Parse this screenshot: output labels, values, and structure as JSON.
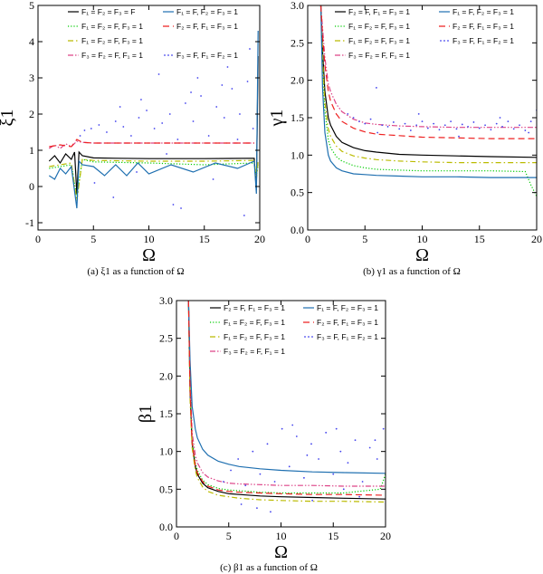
{
  "figure": {
    "captions": [
      "(a) ξ1 as a function of Ω",
      "(b) γ1 as a function of Ω",
      "(c) β1 as a function of Ω"
    ]
  },
  "chart_data": [
    {
      "id": "a",
      "type": "line",
      "title": "",
      "xlabel": "Ω",
      "ylabel": "ξ1",
      "xlim": [
        0,
        20
      ],
      "ylim": [
        -1.2,
        5
      ],
      "xticks": [
        0,
        5,
        10,
        15,
        20
      ],
      "yticks": [
        -1,
        0,
        1,
        2,
        3,
        4,
        5
      ],
      "legend_position": "top-right",
      "series": [
        {
          "name": "F₁ = F₂ = F₃ = F",
          "color": "#000000",
          "style": "solid",
          "x": [
            1,
            1.5,
            2,
            2.5,
            3,
            3.3,
            3.5,
            3.7,
            4,
            5,
            7,
            10,
            15,
            19.5,
            19.7,
            19.85
          ],
          "y": [
            0.7,
            0.85,
            0.65,
            0.9,
            0.75,
            0.95,
            -0.2,
            0.95,
            0.85,
            0.79,
            0.78,
            0.77,
            0.77,
            0.78,
            -0.1,
            3.6
          ]
        },
        {
          "name": "F₁ = F₂ = F, F₃ = 1",
          "color": "#00cc00",
          "style": "dotted",
          "x": [
            1,
            2,
            3,
            3.5,
            4,
            5,
            10,
            15,
            19.5,
            19.7,
            19.85
          ],
          "y": [
            0.5,
            0.55,
            0.6,
            -0.3,
            0.75,
            0.68,
            0.65,
            0.6,
            0.65,
            0.3,
            0.6
          ]
        },
        {
          "name": "F₁ = F₂ = F, F₃ = 1",
          "color": "#bbbb00",
          "style": "dashdot",
          "x": [
            1,
            2,
            3,
            3.5,
            4,
            5,
            10,
            15,
            19.5,
            19.7,
            19.85
          ],
          "y": [
            0.55,
            0.6,
            0.65,
            -0.4,
            0.75,
            0.72,
            0.7,
            0.7,
            0.72,
            0.2,
            0.7
          ]
        },
        {
          "name": "F₃ = F₂ = F, F₁ = 1",
          "color": "#dd4488",
          "style": "dashdotdot",
          "x": [
            1,
            1.5,
            2,
            2.5,
            3,
            3.5,
            4,
            5,
            10,
            15,
            19.5
          ],
          "y": [
            1.05,
            1.15,
            1.05,
            1.18,
            1.1,
            1.25,
            1.22,
            1.2,
            1.2,
            1.2,
            1.2
          ]
        },
        {
          "name": "F₁ = F, F₂ = F₃ = 1",
          "color": "#1e6fb0",
          "style": "solid",
          "x": [
            1,
            1.5,
            2,
            2.5,
            3,
            3.5,
            3.7,
            4,
            5,
            6,
            7,
            8,
            9,
            10,
            12,
            14,
            16,
            18,
            19.5,
            19.7,
            19.85
          ],
          "y": [
            0.3,
            0.2,
            0.5,
            0.35,
            0.55,
            -0.6,
            0.7,
            0.6,
            0.55,
            0.3,
            0.6,
            0.3,
            0.65,
            0.35,
            0.6,
            0.4,
            0.65,
            0.5,
            0.7,
            -0.2,
            4.3
          ]
        },
        {
          "name": "F₂ = F, F₁ = F₃ = 1",
          "color": "#ee2222",
          "style": "dashed",
          "x": [
            1,
            2,
            3,
            3.5,
            4,
            5,
            10,
            15,
            19.5
          ],
          "y": [
            1.1,
            1.15,
            1.1,
            1.3,
            1.22,
            1.2,
            1.2,
            1.2,
            1.2
          ]
        },
        {
          "name": "F₃ = F, F₁ = F₂ = 1",
          "color": "#4444ee",
          "style": "scatter",
          "x": [
            3.8,
            4.2,
            4.8,
            5.5,
            6.2,
            7.0,
            7.7,
            8.4,
            9.1,
            9.8,
            10.5,
            11.2,
            11.9,
            12.6,
            13.3,
            14.0,
            14.7,
            15.4,
            16.1,
            16.8,
            17.5,
            18.2,
            18.9,
            19.4,
            5.1,
            6.8,
            8.9,
            10.9,
            12.2,
            13.8,
            15.8,
            17.1,
            18.6,
            9.3,
            11.6,
            14.4,
            16.6,
            18.0,
            19.1,
            7.4,
            12.9
          ],
          "y": [
            1.4,
            1.55,
            1.6,
            1.7,
            1.5,
            1.8,
            1.65,
            1.4,
            1.9,
            2.1,
            1.6,
            1.75,
            2.0,
            1.3,
            2.3,
            1.8,
            2.5,
            1.4,
            2.2,
            1.9,
            2.7,
            2.0,
            2.9,
            1.6,
            0.1,
            -0.3,
            0.4,
            3.1,
            -0.5,
            2.6,
            0.2,
            3.3,
            -0.8,
            2.4,
            0.9,
            3.0,
            2.8,
            1.3,
            3.8,
            2.2,
            -0.6
          ]
        }
      ]
    },
    {
      "id": "b",
      "type": "line",
      "title": "",
      "xlabel": "Ω",
      "ylabel": "γ1",
      "xlim": [
        0,
        20
      ],
      "ylim": [
        0,
        3
      ],
      "xticks": [
        0,
        5,
        10,
        15,
        20
      ],
      "yticks": [
        0.0,
        0.5,
        1.0,
        1.5,
        2.0,
        2.5,
        3.0
      ],
      "legend_position": "top-right",
      "series": [
        {
          "name": "F₂ = F, F₁ = F₃ = 1",
          "color": "#000000",
          "style": "solid",
          "x": [
            1.15,
            1.3,
            1.5,
            1.8,
            2,
            2.5,
            3,
            4,
            5,
            6,
            8,
            10,
            13,
            16,
            20
          ],
          "y": [
            3.0,
            2.4,
            1.85,
            1.5,
            1.4,
            1.25,
            1.17,
            1.1,
            1.06,
            1.04,
            1.01,
            1.0,
            0.99,
            0.98,
            0.97
          ]
        },
        {
          "name": "F₁ = F₂ = F, F₃ = 1",
          "color": "#00cc00",
          "style": "dotted",
          "x": [
            1.15,
            1.3,
            1.5,
            1.8,
            2,
            2.5,
            3,
            4,
            5,
            6,
            8,
            10,
            13,
            16,
            19,
            19.5,
            20
          ],
          "y": [
            3.0,
            2.2,
            1.6,
            1.2,
            1.1,
            0.98,
            0.92,
            0.86,
            0.83,
            0.81,
            0.8,
            0.79,
            0.79,
            0.79,
            0.78,
            0.6,
            0.45
          ]
        },
        {
          "name": "F₁ = F₂ = F, F₃ = 1",
          "color": "#bbbb00",
          "style": "dashdot",
          "x": [
            1.15,
            1.3,
            1.5,
            1.8,
            2,
            2.5,
            3,
            4,
            5,
            6,
            8,
            10,
            13,
            16,
            20
          ],
          "y": [
            3.0,
            2.3,
            1.7,
            1.35,
            1.25,
            1.12,
            1.05,
            0.99,
            0.96,
            0.94,
            0.92,
            0.91,
            0.9,
            0.9,
            0.9
          ]
        },
        {
          "name": "F₃ = F₂ = F, F₁ = 1",
          "color": "#dd4488",
          "style": "dashdotdot",
          "x": [
            1.15,
            1.3,
            1.5,
            1.8,
            2,
            2.5,
            3,
            4,
            5,
            6,
            8,
            10,
            13,
            16,
            20
          ],
          "y": [
            3.0,
            2.7,
            2.3,
            1.95,
            1.85,
            1.68,
            1.58,
            1.48,
            1.43,
            1.41,
            1.39,
            1.38,
            1.37,
            1.37,
            1.37
          ]
        },
        {
          "name": "F₁ = F, F₂ = F₃ = 1",
          "color": "#1e6fb0",
          "style": "solid",
          "x": [
            1.15,
            1.3,
            1.5,
            1.8,
            2,
            2.5,
            3,
            4,
            5,
            6,
            8,
            10,
            13,
            16,
            19.5,
            20
          ],
          "y": [
            3.0,
            1.9,
            1.3,
            1.0,
            0.92,
            0.83,
            0.79,
            0.75,
            0.74,
            0.73,
            0.72,
            0.71,
            0.71,
            0.7,
            0.7,
            0.7
          ]
        },
        {
          "name": "F₂ = F, F₁ = F₃ = 1",
          "color": "#ee2222",
          "style": "dashed",
          "x": [
            1.15,
            1.3,
            1.5,
            1.8,
            2,
            2.5,
            3,
            4,
            5,
            6,
            8,
            10,
            13,
            16,
            20
          ],
          "y": [
            3.0,
            2.6,
            2.2,
            1.85,
            1.72,
            1.55,
            1.45,
            1.36,
            1.31,
            1.28,
            1.26,
            1.24,
            1.23,
            1.22,
            1.22
          ]
        },
        {
          "name": "F₃ = F, F₁ = F₂ = 1",
          "color": "#4444ee",
          "style": "scatter",
          "x": [
            3.5,
            4.0,
            4.5,
            5.0,
            5.5,
            6.0,
            6.5,
            7.0,
            7.5,
            8.0,
            8.5,
            9.0,
            9.5,
            10.0,
            10.5,
            11.0,
            11.5,
            12.0,
            12.5,
            13.0,
            13.5,
            14.0,
            14.5,
            15.0,
            15.5,
            16.0,
            16.5,
            17.0,
            17.5,
            18.0,
            18.5,
            19.0,
            19.5,
            20.0,
            6.1,
            9.7,
            13.2,
            16.8,
            19.3
          ],
          "y": [
            1.55,
            1.5,
            1.45,
            1.42,
            1.48,
            1.9,
            1.4,
            1.38,
            1.44,
            1.35,
            1.42,
            1.33,
            1.4,
            1.45,
            1.36,
            1.42,
            1.34,
            1.4,
            1.45,
            1.35,
            1.41,
            1.38,
            1.44,
            1.36,
            1.4,
            1.34,
            1.42,
            1.38,
            1.45,
            1.35,
            1.4,
            1.33,
            1.45,
            1.6,
            1.3,
            1.55,
            1.25,
            1.5,
            1.3
          ]
        }
      ]
    },
    {
      "id": "c",
      "type": "line",
      "title": "",
      "xlabel": "Ω",
      "ylabel": "β1",
      "xlim": [
        0,
        20
      ],
      "ylim": [
        0,
        3
      ],
      "xticks": [
        0,
        5,
        10,
        15,
        20
      ],
      "yticks": [
        0.0,
        0.5,
        1.0,
        1.5,
        2.0,
        2.5,
        3.0
      ],
      "legend_position": "top-right",
      "series": [
        {
          "name": "F₂ = F, F₁ = F₃ = 1",
          "color": "#000000",
          "style": "solid",
          "x": [
            1.15,
            1.3,
            1.5,
            1.8,
            2,
            2.5,
            3,
            4,
            5,
            6,
            8,
            10,
            13,
            16,
            20
          ],
          "y": [
            3.0,
            1.8,
            1.1,
            0.8,
            0.7,
            0.58,
            0.52,
            0.47,
            0.44,
            0.43,
            0.41,
            0.4,
            0.39,
            0.38,
            0.37
          ]
        },
        {
          "name": "F₁ = F₂ = F, F₃ = 1",
          "color": "#00cc00",
          "style": "dotted",
          "x": [
            1.15,
            1.3,
            1.5,
            1.8,
            2,
            2.5,
            3,
            4,
            5,
            6,
            8,
            10,
            13,
            16,
            19.5,
            20
          ],
          "y": [
            3.0,
            1.9,
            1.15,
            0.85,
            0.75,
            0.62,
            0.56,
            0.51,
            0.49,
            0.48,
            0.46,
            0.45,
            0.45,
            0.45,
            0.5,
            0.7
          ]
        },
        {
          "name": "F₁ = F₂ = F, F₃ = 1",
          "color": "#bbbb00",
          "style": "dashdot",
          "x": [
            1.15,
            1.3,
            1.5,
            1.8,
            2,
            2.5,
            3,
            4,
            5,
            6,
            8,
            10,
            13,
            16,
            20
          ],
          "y": [
            3.0,
            1.7,
            1.05,
            0.75,
            0.65,
            0.53,
            0.47,
            0.42,
            0.4,
            0.38,
            0.36,
            0.35,
            0.34,
            0.34,
            0.33
          ]
        },
        {
          "name": "F₃ = F₂ = F, F₁ = 1",
          "color": "#dd4488",
          "style": "dashdotdot",
          "x": [
            1.15,
            1.3,
            1.5,
            1.8,
            2,
            2.5,
            3,
            4,
            5,
            6,
            8,
            10,
            13,
            16,
            20
          ],
          "y": [
            3.0,
            2.0,
            1.25,
            0.95,
            0.85,
            0.72,
            0.66,
            0.61,
            0.58,
            0.57,
            0.56,
            0.55,
            0.55,
            0.54,
            0.54
          ]
        },
        {
          "name": "F₁ = F, F₂ = F₃ = 1",
          "color": "#1e6fb0",
          "style": "solid",
          "x": [
            1.15,
            1.3,
            1.5,
            1.8,
            2,
            2.5,
            3,
            4,
            5,
            6,
            8,
            10,
            13,
            16,
            20
          ],
          "y": [
            3.0,
            2.2,
            1.6,
            1.3,
            1.18,
            1.03,
            0.95,
            0.87,
            0.83,
            0.8,
            0.77,
            0.75,
            0.73,
            0.72,
            0.71
          ]
        },
        {
          "name": "F₂ = F, F₁ = F₃ = 1",
          "color": "#ee2222",
          "style": "dashed",
          "x": [
            1.15,
            1.3,
            1.5,
            1.8,
            2,
            2.5,
            3,
            4,
            5,
            6,
            8,
            10,
            13,
            16,
            20
          ],
          "y": [
            3.0,
            1.85,
            1.12,
            0.82,
            0.72,
            0.6,
            0.54,
            0.49,
            0.47,
            0.46,
            0.45,
            0.44,
            0.43,
            0.43,
            0.42
          ]
        },
        {
          "name": "F₃ = F, F₁ = F₂ = 1",
          "color": "#4444ee",
          "style": "scatter",
          "x": [
            4.5,
            5.2,
            5.9,
            6.6,
            7.3,
            8.0,
            8.7,
            9.4,
            10.1,
            10.8,
            11.5,
            12.2,
            12.9,
            13.6,
            14.3,
            15.0,
            15.7,
            16.4,
            17.1,
            17.8,
            18.5,
            19.2,
            19.8,
            6.2,
            9.0,
            11.1,
            13.0,
            15.3,
            17.5,
            19.0,
            7.7,
            12.5,
            16.0
          ],
          "y": [
            0.6,
            0.75,
            0.9,
            0.55,
            1.0,
            0.7,
            1.1,
            0.6,
            1.3,
            0.8,
            1.2,
            0.65,
            1.1,
            0.9,
            1.25,
            0.7,
            1.0,
            0.85,
            1.15,
            0.6,
            1.05,
            0.9,
            1.3,
            0.3,
            0.2,
            1.35,
            0.35,
            1.3,
            0.4,
            1.15,
            0.25,
            0.95,
            0.5
          ]
        }
      ]
    }
  ]
}
